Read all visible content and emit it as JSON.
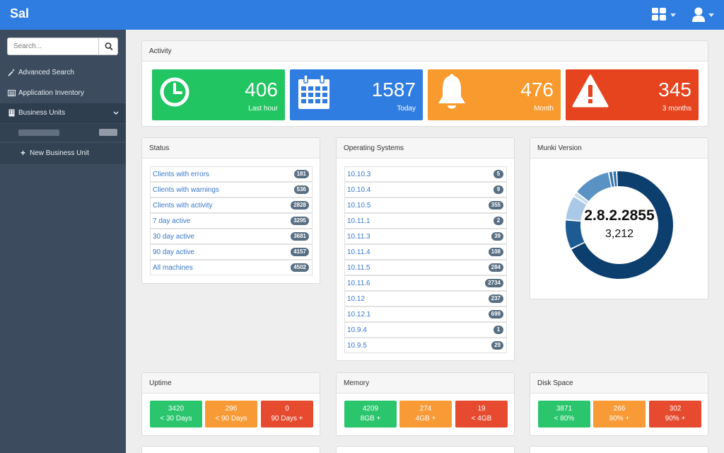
{
  "app": {
    "brand": "Sal"
  },
  "navbar": {
    "menu_icon": "grid-icon",
    "user_icon": "user-icon"
  },
  "sidebar": {
    "search_placeholder": "Search...",
    "items": [
      {
        "label": "Advanced Search",
        "icon": "magic-wand-icon"
      },
      {
        "label": "Application Inventory",
        "icon": "inventory-icon"
      },
      {
        "label": "Business Units",
        "icon": "building-icon"
      }
    ],
    "new_business_unit": "New Business Unit"
  },
  "activity": {
    "title": "Activity",
    "tiles": [
      {
        "value": "406",
        "label": "Last hour",
        "color": "#21c562",
        "icon": "clock-icon"
      },
      {
        "value": "1587",
        "label": "Today",
        "color": "#2f7de1",
        "icon": "calendar-icon"
      },
      {
        "value": "476",
        "label": "Month",
        "color": "#f89a2d",
        "icon": "bell-icon"
      },
      {
        "value": "345",
        "label": "3 months",
        "color": "#e6431f",
        "icon": "warning-icon"
      }
    ]
  },
  "status": {
    "title": "Status",
    "rows": [
      {
        "label": "Clients with errors",
        "count": "181"
      },
      {
        "label": "Clients with warnings",
        "count": "536"
      },
      {
        "label": "Clients with activity",
        "count": "2828"
      },
      {
        "label": "7 day active",
        "count": "3295"
      },
      {
        "label": "30 day active",
        "count": "3681"
      },
      {
        "label": "90 day active",
        "count": "4157"
      },
      {
        "label": "All machines",
        "count": "4502"
      }
    ]
  },
  "os": {
    "title": "Operating Systems",
    "rows": [
      {
        "label": "10.10.3",
        "count": "5"
      },
      {
        "label": "10.10.4",
        "count": "9"
      },
      {
        "label": "10.10.5",
        "count": "355"
      },
      {
        "label": "10.11.1",
        "count": "2"
      },
      {
        "label": "10.11.3",
        "count": "39"
      },
      {
        "label": "10.11.4",
        "count": "108"
      },
      {
        "label": "10.11.5",
        "count": "284"
      },
      {
        "label": "10.11.6",
        "count": "2734"
      },
      {
        "label": "10.12",
        "count": "237"
      },
      {
        "label": "10.12.1",
        "count": "699"
      },
      {
        "label": "10.9.4",
        "count": "1"
      },
      {
        "label": "10.9.5",
        "count": "29"
      }
    ]
  },
  "munki": {
    "title": "Munki Version",
    "center_version": "2.8.2.2855",
    "center_count": "3,212",
    "segments": [
      {
        "fraction": 0.675,
        "color": "#0d3f6e"
      },
      {
        "fraction": 0.004,
        "color": "#ffffff"
      },
      {
        "fraction": 0.085,
        "color": "#1d5b93"
      },
      {
        "fraction": 0.004,
        "color": "#ffffff"
      },
      {
        "fraction": 0.07,
        "color": "#a9c9e6"
      },
      {
        "fraction": 0.004,
        "color": "#ffffff"
      },
      {
        "fraction": 0.01,
        "color": "#c7dcef"
      },
      {
        "fraction": 0.004,
        "color": "#ffffff"
      },
      {
        "fraction": 0.11,
        "color": "#5a92c4"
      },
      {
        "fraction": 0.004,
        "color": "#ffffff"
      },
      {
        "fraction": 0.008,
        "color": "#2f6fa8"
      },
      {
        "fraction": 0.004,
        "color": "#ffffff"
      },
      {
        "fraction": 0.008,
        "color": "#2f6fa8"
      },
      {
        "fraction": 0.004,
        "color": "#ffffff"
      },
      {
        "fraction": 0.006,
        "color": "#0d3f6e"
      }
    ]
  },
  "uptime": {
    "title": "Uptime",
    "boxes": [
      {
        "value": "3420",
        "label": "< 30 Days"
      },
      {
        "value": "296",
        "label": "< 90 Days"
      },
      {
        "value": "0",
        "label": "90 Days +"
      }
    ]
  },
  "memory": {
    "title": "Memory",
    "boxes": [
      {
        "value": "4209",
        "label": "8GB +"
      },
      {
        "value": "274",
        "label": "4GB +"
      },
      {
        "value": "19",
        "label": "< 4GB"
      }
    ]
  },
  "disk": {
    "title": "Disk Space",
    "boxes": [
      {
        "value": "3871",
        "label": "< 80%"
      },
      {
        "value": "266",
        "label": "80% +"
      },
      {
        "value": "302",
        "label": "90% +"
      }
    ]
  }
}
